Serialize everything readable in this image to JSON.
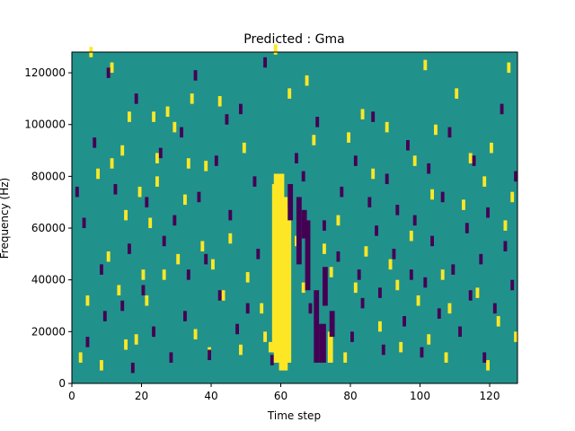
{
  "chart_data": {
    "type": "heatmap",
    "title": "Predicted : Gma",
    "xlabel": "Time step",
    "ylabel": "Frequency (Hz)",
    "xlim": [
      0,
      128
    ],
    "ylim": [
      0,
      128000
    ],
    "x_ticks": [
      0,
      20,
      40,
      60,
      80,
      100,
      120
    ],
    "y_ticks": [
      0,
      20000,
      40000,
      60000,
      80000,
      100000,
      120000
    ],
    "x_tick_labels": [
      "0",
      "20",
      "40",
      "60",
      "80",
      "100",
      "120"
    ],
    "y_tick_labels": [
      "0",
      "20000",
      "40000",
      "60000",
      "80000",
      "100000",
      "120000"
    ],
    "n_time_steps": 128,
    "n_freq_bins": 128,
    "freq_bin_width_hz": 1000,
    "grid": false,
    "colors": {
      "background": "#21918c",
      "high": "#fde725",
      "low": "#440154"
    },
    "regions": [
      {
        "level": "high",
        "t": [
          57.5,
          59.5
        ],
        "f": [
          12000,
          77000
        ]
      },
      {
        "level": "high",
        "t": [
          58,
          61
        ],
        "f": [
          8000,
          81000
        ]
      },
      {
        "level": "high",
        "t": [
          59.5,
          62
        ],
        "f": [
          5000,
          72000
        ]
      },
      {
        "level": "high",
        "t": [
          61,
          63
        ],
        "f": [
          8000,
          68000
        ]
      },
      {
        "level": "high",
        "t": [
          56.5,
          58
        ],
        "f": [
          12000,
          16000
        ]
      },
      {
        "level": "low",
        "t": [
          62,
          63.5
        ],
        "f": [
          63000,
          77000
        ]
      },
      {
        "level": "low",
        "t": [
          64.5,
          66
        ],
        "f": [
          46000,
          72000
        ]
      },
      {
        "level": "low",
        "t": [
          66,
          67.5
        ],
        "f": [
          56000,
          67000
        ]
      },
      {
        "level": "low",
        "t": [
          67,
          68.5
        ],
        "f": [
          36000,
          63000
        ]
      },
      {
        "level": "low",
        "t": [
          69.5,
          71
        ],
        "f": [
          8000,
          36000
        ]
      },
      {
        "level": "low",
        "t": [
          71,
          73
        ],
        "f": [
          8000,
          23000
        ]
      },
      {
        "level": "low",
        "t": [
          72,
          73.5
        ],
        "f": [
          30000,
          45000
        ]
      },
      {
        "level": "high",
        "t": [
          73.5,
          75
        ],
        "f": [
          8000,
          20000
        ]
      },
      {
        "level": "low",
        "t": [
          74,
          75.5
        ],
        "f": [
          18000,
          28000
        ]
      }
    ],
    "speckle_cells": {
      "high": [
        [
          2,
          8
        ],
        [
          4,
          30
        ],
        [
          5,
          126
        ],
        [
          7,
          79
        ],
        [
          8,
          5
        ],
        [
          10,
          47
        ],
        [
          11,
          120
        ],
        [
          11,
          83
        ],
        [
          13,
          34
        ],
        [
          14,
          88
        ],
        [
          15,
          63
        ],
        [
          15,
          13
        ],
        [
          16,
          101
        ],
        [
          18,
          15
        ],
        [
          19,
          72
        ],
        [
          20,
          40
        ],
        [
          21,
          30
        ],
        [
          22,
          60
        ],
        [
          23,
          101
        ],
        [
          24,
          85
        ],
        [
          24,
          76
        ],
        [
          26,
          40
        ],
        [
          27,
          103
        ],
        [
          29,
          97
        ],
        [
          30,
          46
        ],
        [
          32,
          69
        ],
        [
          33,
          83
        ],
        [
          34,
          108
        ],
        [
          35,
          17
        ],
        [
          37,
          51
        ],
        [
          38,
          82
        ],
        [
          39,
          10
        ],
        [
          40,
          44
        ],
        [
          42,
          107
        ],
        [
          43,
          32
        ],
        [
          45,
          54
        ],
        [
          48,
          11
        ],
        [
          49,
          89
        ],
        [
          50,
          39
        ],
        [
          54,
          27
        ],
        [
          55,
          16
        ],
        [
          58,
          127
        ],
        [
          62,
          110
        ],
        [
          64,
          53
        ],
        [
          66,
          35
        ],
        [
          67,
          115
        ],
        [
          69,
          92
        ],
        [
          72,
          50
        ],
        [
          74,
          41
        ],
        [
          76,
          61
        ],
        [
          78,
          8
        ],
        [
          79,
          93
        ],
        [
          81,
          35
        ],
        [
          83,
          102
        ],
        [
          84,
          49
        ],
        [
          86,
          79
        ],
        [
          88,
          20
        ],
        [
          90,
          97
        ],
        [
          91,
          44
        ],
        [
          93,
          36
        ],
        [
          94,
          12
        ],
        [
          97,
          55
        ],
        [
          98,
          84
        ],
        [
          99,
          30
        ],
        [
          101,
          121
        ],
        [
          102,
          15
        ],
        [
          103,
          71
        ],
        [
          104,
          96
        ],
        [
          106,
          40
        ],
        [
          107,
          8
        ],
        [
          108,
          27
        ],
        [
          110,
          110
        ],
        [
          112,
          67
        ],
        [
          114,
          85
        ],
        [
          116,
          33
        ],
        [
          118,
          76
        ],
        [
          119,
          5
        ],
        [
          120,
          89
        ],
        [
          122,
          22
        ],
        [
          124,
          59
        ],
        [
          125,
          120
        ],
        [
          126,
          70
        ],
        [
          127,
          16
        ]
      ],
      "low": [
        [
          1,
          72
        ],
        [
          3,
          60
        ],
        [
          4,
          14
        ],
        [
          6,
          91
        ],
        [
          8,
          42
        ],
        [
          9,
          24
        ],
        [
          10,
          118
        ],
        [
          12,
          73
        ],
        [
          14,
          28
        ],
        [
          16,
          50
        ],
        [
          17,
          4
        ],
        [
          18,
          108
        ],
        [
          20,
          34
        ],
        [
          21,
          68
        ],
        [
          23,
          18
        ],
        [
          25,
          87
        ],
        [
          26,
          53
        ],
        [
          28,
          8
        ],
        [
          29,
          61
        ],
        [
          31,
          95
        ],
        [
          32,
          24
        ],
        [
          33,
          40
        ],
        [
          35,
          117
        ],
        [
          36,
          70
        ],
        [
          38,
          46
        ],
        [
          39,
          9
        ],
        [
          41,
          84
        ],
        [
          42,
          32
        ],
        [
          44,
          100
        ],
        [
          45,
          63
        ],
        [
          47,
          19
        ],
        [
          48,
          104
        ],
        [
          50,
          27
        ],
        [
          52,
          76
        ],
        [
          53,
          48
        ],
        [
          55,
          122
        ],
        [
          57,
          7
        ],
        [
          64,
          85
        ],
        [
          66,
          78
        ],
        [
          68,
          27
        ],
        [
          70,
          99
        ],
        [
          72,
          59
        ],
        [
          76,
          47
        ],
        [
          77,
          72
        ],
        [
          80,
          16
        ],
        [
          81,
          84
        ],
        [
          82,
          40
        ],
        [
          83,
          29
        ],
        [
          85,
          68
        ],
        [
          86,
          101
        ],
        [
          87,
          57
        ],
        [
          88,
          33
        ],
        [
          89,
          11
        ],
        [
          90,
          77
        ],
        [
          92,
          48
        ],
        [
          93,
          65
        ],
        [
          95,
          22
        ],
        [
          96,
          90
        ],
        [
          97,
          40
        ],
        [
          98,
          61
        ],
        [
          100,
          10
        ],
        [
          101,
          37
        ],
        [
          102,
          81
        ],
        [
          103,
          53
        ],
        [
          105,
          25
        ],
        [
          106,
          70
        ],
        [
          108,
          95
        ],
        [
          109,
          42
        ],
        [
          111,
          18
        ],
        [
          113,
          58
        ],
        [
          114,
          32
        ],
        [
          115,
          84
        ],
        [
          117,
          46
        ],
        [
          118,
          8
        ],
        [
          119,
          64
        ],
        [
          121,
          27
        ],
        [
          123,
          104
        ],
        [
          124,
          51
        ],
        [
          126,
          36
        ],
        [
          127,
          78
        ]
      ]
    }
  }
}
